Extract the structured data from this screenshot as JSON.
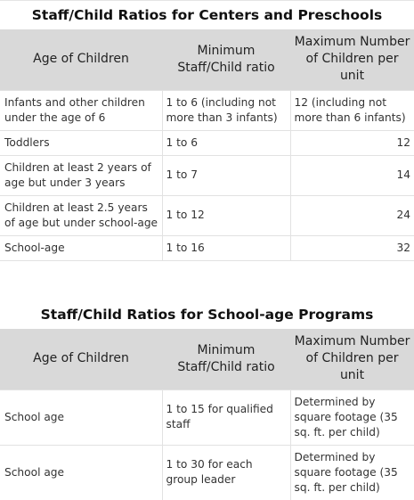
{
  "section1": {
    "title": "Staff/Child Ratios for Centers and Preschools",
    "headers": [
      "Age of Children",
      "Minimum Staff/Child ratio",
      "Maximum Number of Children per unit"
    ],
    "rows": [
      [
        "Infants and other children under the age of 6",
        "1 to 6 (including not more than 3 infants)",
        "12 (including not more than 6 infants)"
      ],
      [
        "Toddlers",
        "1 to 6",
        "12"
      ],
      [
        "Children at least 2 years of age but under 3 years",
        "1 to 7",
        "14"
      ],
      [
        "Children at least 2.5 years of age but under school-age",
        "1 to 12",
        "24"
      ],
      [
        "School-age",
        "1 to 16",
        "32"
      ]
    ]
  },
  "section2": {
    "title": "Staff/Child Ratios for School-age Programs",
    "headers": [
      "Age of Children",
      "Minimum Staff/Child ratio",
      "Maximum Number of Children per unit"
    ],
    "rows": [
      [
        "School age",
        "1 to 15 for qualified staff",
        "Determined by square footage (35 sq. ft. per child)"
      ],
      [
        "School age",
        "1 to 30 for each group leader",
        "Determined by square footage (35 sq. ft. per child)"
      ]
    ]
  }
}
